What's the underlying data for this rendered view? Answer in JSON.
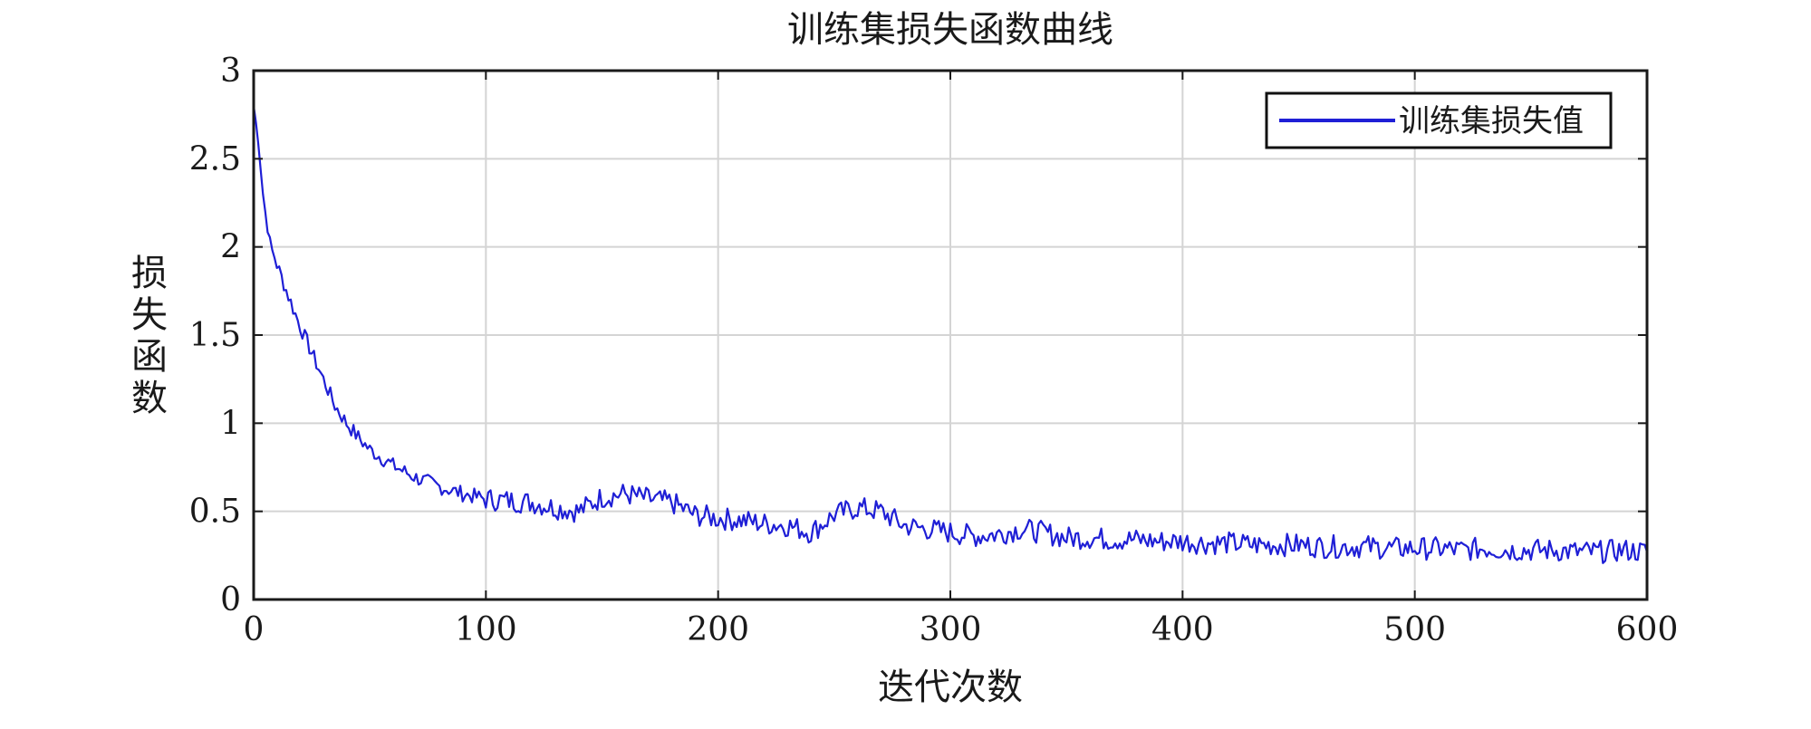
{
  "chart_data": {
    "type": "line",
    "title": "训练集损失函数曲线",
    "xlabel": "迭代次数",
    "ylabel": "损失函数",
    "xlim": [
      0,
      600
    ],
    "ylim": [
      0,
      3
    ],
    "xticks": [
      0,
      100,
      200,
      300,
      400,
      500,
      600
    ],
    "yticks": [
      0,
      0.5,
      1,
      1.5,
      2,
      2.5,
      3
    ],
    "xtick_labels": [
      "0",
      "100",
      "200",
      "300",
      "400",
      "500",
      "600"
    ],
    "ytick_labels": [
      "0",
      "0.5",
      "1",
      "1.5",
      "2",
      "2.5",
      "3"
    ],
    "grid": true,
    "legend_position": "top-right",
    "series": [
      {
        "name": "训练集损失值",
        "color": "#1f1fd6",
        "x": [
          0,
          2,
          4,
          6,
          8,
          10,
          15,
          20,
          25,
          30,
          35,
          40,
          45,
          50,
          60,
          70,
          80,
          90,
          100,
          110,
          120,
          130,
          140,
          150,
          160,
          170,
          180,
          190,
          200,
          210,
          220,
          230,
          240,
          250,
          260,
          270,
          280,
          290,
          300,
          310,
          320,
          330,
          340,
          350,
          360,
          370,
          380,
          390,
          400,
          410,
          420,
          430,
          440,
          450,
          460,
          470,
          480,
          490,
          500,
          510,
          520,
          530,
          540,
          550,
          560,
          570,
          580,
          590,
          600
        ],
        "y": [
          2.8,
          2.6,
          2.3,
          2.1,
          1.98,
          1.9,
          1.72,
          1.55,
          1.4,
          1.25,
          1.1,
          1.0,
          0.92,
          0.85,
          0.76,
          0.69,
          0.64,
          0.6,
          0.57,
          0.56,
          0.55,
          0.52,
          0.5,
          0.58,
          0.6,
          0.57,
          0.55,
          0.48,
          0.46,
          0.45,
          0.43,
          0.42,
          0.38,
          0.48,
          0.52,
          0.5,
          0.42,
          0.4,
          0.38,
          0.36,
          0.37,
          0.4,
          0.38,
          0.35,
          0.35,
          0.34,
          0.34,
          0.33,
          0.33,
          0.32,
          0.32,
          0.31,
          0.31,
          0.31,
          0.3,
          0.3,
          0.3,
          0.29,
          0.29,
          0.29,
          0.28,
          0.29,
          0.28,
          0.28,
          0.28,
          0.27,
          0.27,
          0.28,
          0.27
        ]
      }
    ]
  }
}
